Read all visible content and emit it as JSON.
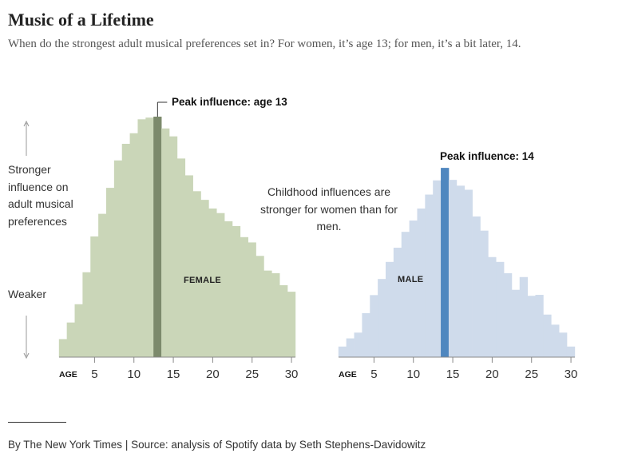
{
  "title": "Music of a Lifetime",
  "subtitle": "When do the strongest adult musical preferences set in? For women, it’s age 13; for men, it’s a bit later, 14.",
  "side_labels": {
    "stronger": "Stronger influence on adult musical preferences",
    "weaker": "Weaker"
  },
  "annotation": "Childhood influences are stronger for women than for men.",
  "footer": "By The New York Times | Source: analysis of Spotify data by Seth Stephens-Davidowitz",
  "chart_data": [
    {
      "type": "bar",
      "label": "FEMALE",
      "xlabel": "AGE",
      "x": [
        1,
        2,
        3,
        4,
        5,
        6,
        7,
        8,
        9,
        10,
        11,
        12,
        13,
        14,
        15,
        16,
        17,
        18,
        19,
        20,
        21,
        22,
        23,
        24,
        25,
        26,
        27,
        28,
        29,
        30
      ],
      "values": [
        7.5,
        14.4,
        22,
        35.3,
        50.2,
        59.6,
        70.4,
        81.8,
        88.7,
        93.1,
        98.9,
        99.6,
        100,
        95.1,
        91.8,
        82.6,
        75.6,
        69,
        65.4,
        61.8,
        59.9,
        56.5,
        54.5,
        49.9,
        47.7,
        42.1,
        36,
        34.9,
        29.9,
        27.2
      ],
      "xticks": [
        5,
        10,
        15,
        20,
        25,
        30
      ],
      "xlim": [
        0.5,
        30.5
      ],
      "ylim": [
        0,
        100
      ],
      "peak_age": 13,
      "peak_label": "Peak influence: age 13",
      "colors": {
        "bar": "#cad6b8",
        "peak": "#7c8a6c"
      },
      "grid": false
    },
    {
      "type": "bar",
      "label": "MALE",
      "xlabel": "AGE",
      "x": [
        1,
        2,
        3,
        4,
        5,
        6,
        7,
        8,
        9,
        10,
        11,
        12,
        13,
        14,
        15,
        16,
        17,
        18,
        19,
        20,
        21,
        22,
        23,
        24,
        25,
        26,
        27,
        28,
        29,
        30
      ],
      "values": [
        4.4,
        7.8,
        10.2,
        18.3,
        25.8,
        32.5,
        39.6,
        45.5,
        52.1,
        56.8,
        61.8,
        67.6,
        73.5,
        78.7,
        73.7,
        71.3,
        69.6,
        58.5,
        52.6,
        41.6,
        39.6,
        34.9,
        28,
        33.3,
        25.5,
        25.9,
        17.7,
        13.5,
        10.2,
        4.4
      ],
      "xticks": [
        5,
        10,
        15,
        20,
        25,
        30
      ],
      "xlim": [
        0.5,
        30.5
      ],
      "ylim": [
        0,
        100
      ],
      "peak_age": 14,
      "peak_label": "Peak influence: 14",
      "colors": {
        "bar": "#cfdbeb",
        "peak": "#4f87bf"
      },
      "grid": false
    }
  ]
}
